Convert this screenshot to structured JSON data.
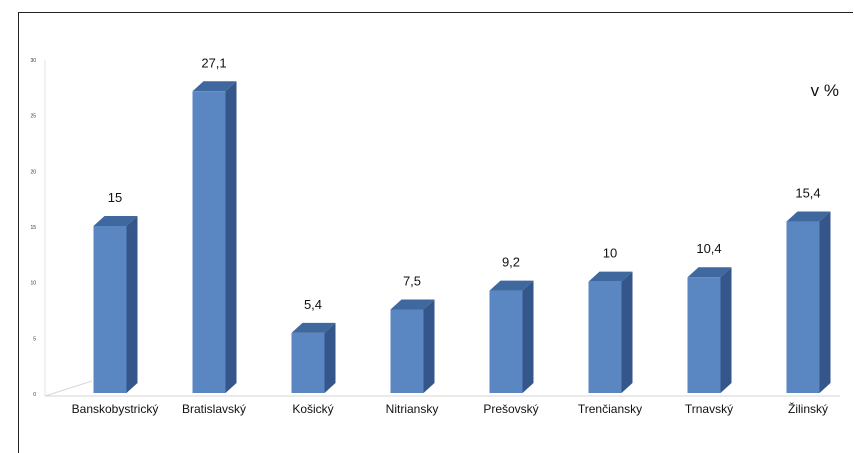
{
  "chart_data": {
    "type": "bar",
    "unit_label": "v %",
    "categories": [
      "Banskobystrický",
      "Bratislavský",
      "Košický",
      "Nitriansky",
      "Prešovský",
      "Trenčiansky",
      "Trnavský",
      "Žilinský"
    ],
    "values": [
      15,
      27.1,
      5.4,
      7.5,
      9.2,
      10,
      10.4,
      15.4
    ],
    "value_labels": [
      "15",
      "27,1",
      "5,4",
      "7,5",
      "9,2",
      "10",
      "10,4",
      "15,4"
    ],
    "ylim": [
      0,
      30
    ],
    "yticks": [
      "0",
      "5",
      "10",
      "15",
      "20",
      "25",
      "30"
    ],
    "colors": {
      "front": "#5a86c2",
      "side": "#34568a",
      "top": "#3f689f"
    }
  }
}
